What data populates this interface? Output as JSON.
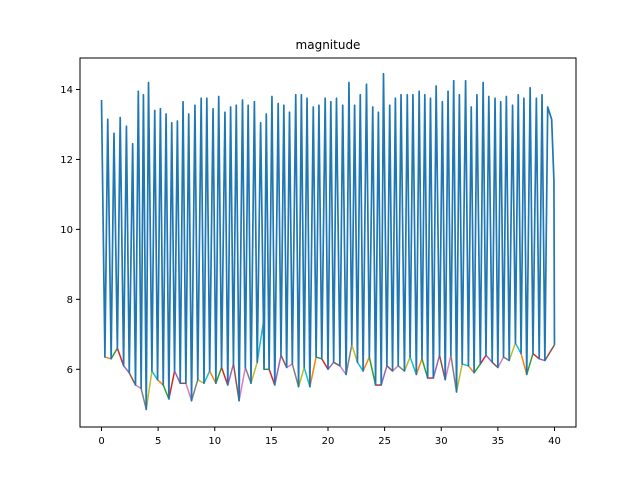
{
  "chart_data": {
    "type": "line",
    "title": "magnitude",
    "xlabel": "",
    "ylabel": "",
    "xlim": [
      -1.9,
      41.9
    ],
    "ylim": [
      4.35,
      14.9
    ],
    "xticks": [
      0,
      5,
      10,
      15,
      20,
      25,
      30,
      35,
      40
    ],
    "yticks": [
      6,
      8,
      10,
      12,
      14
    ],
    "grid": false,
    "legend": "none",
    "series_main": {
      "color": "#1f77b4",
      "peaks": [
        [
          0.0,
          13.7
        ],
        [
          0.55,
          13.15
        ],
        [
          1.1,
          12.75
        ],
        [
          1.65,
          13.2
        ],
        [
          2.2,
          12.95
        ],
        [
          2.75,
          12.45
        ],
        [
          3.25,
          13.95
        ],
        [
          3.7,
          13.85
        ],
        [
          4.15,
          14.2
        ],
        [
          4.7,
          13.4
        ],
        [
          5.2,
          13.45
        ],
        [
          5.7,
          13.3
        ],
        [
          6.2,
          13.05
        ],
        [
          6.7,
          13.1
        ],
        [
          7.2,
          13.65
        ],
        [
          7.7,
          13.3
        ],
        [
          8.25,
          13.55
        ],
        [
          8.8,
          13.75
        ],
        [
          9.3,
          13.75
        ],
        [
          9.85,
          13.45
        ],
        [
          10.35,
          13.8
        ],
        [
          10.9,
          13.35
        ],
        [
          11.4,
          13.5
        ],
        [
          11.9,
          13.55
        ],
        [
          12.45,
          13.7
        ],
        [
          12.95,
          13.55
        ],
        [
          13.5,
          13.65
        ],
        [
          14.05,
          13.05
        ],
        [
          14.55,
          13.3
        ],
        [
          15.05,
          13.8
        ],
        [
          15.6,
          13.6
        ],
        [
          16.1,
          13.55
        ],
        [
          16.6,
          13.35
        ],
        [
          17.15,
          13.85
        ],
        [
          17.65,
          13.85
        ],
        [
          18.15,
          13.75
        ],
        [
          18.7,
          13.5
        ],
        [
          19.2,
          13.55
        ],
        [
          19.75,
          13.75
        ],
        [
          20.25,
          13.65
        ],
        [
          20.75,
          13.75
        ],
        [
          21.3,
          13.55
        ],
        [
          21.85,
          14.2
        ],
        [
          22.35,
          13.55
        ],
        [
          22.85,
          13.85
        ],
        [
          23.4,
          14.15
        ],
        [
          23.95,
          13.5
        ],
        [
          24.45,
          13.35
        ],
        [
          24.9,
          14.45
        ],
        [
          25.45,
          13.55
        ],
        [
          25.95,
          13.75
        ],
        [
          26.45,
          13.85
        ],
        [
          27.0,
          13.85
        ],
        [
          27.5,
          13.85
        ],
        [
          28.05,
          13.95
        ],
        [
          28.55,
          13.85
        ],
        [
          29.05,
          13.75
        ],
        [
          29.55,
          14.1
        ],
        [
          30.1,
          13.65
        ],
        [
          30.6,
          13.95
        ],
        [
          31.1,
          14.25
        ],
        [
          31.6,
          13.85
        ],
        [
          32.15,
          14.25
        ],
        [
          32.65,
          13.5
        ],
        [
          33.15,
          13.85
        ],
        [
          33.7,
          14.2
        ],
        [
          34.2,
          13.8
        ],
        [
          34.75,
          13.75
        ],
        [
          35.25,
          13.65
        ],
        [
          35.75,
          13.8
        ],
        [
          36.3,
          13.55
        ],
        [
          36.8,
          13.85
        ],
        [
          37.3,
          13.75
        ],
        [
          37.85,
          14.05
        ],
        [
          38.4,
          13.75
        ],
        [
          38.9,
          13.85
        ],
        [
          39.4,
          13.5
        ],
        [
          39.75,
          13.15
        ],
        [
          39.95,
          11.4
        ]
      ],
      "troughs": [
        [
          0.3,
          6.35
        ],
        [
          0.85,
          6.3
        ],
        [
          1.4,
          6.6
        ],
        [
          1.95,
          6.1
        ],
        [
          2.45,
          5.9
        ],
        [
          3.0,
          5.55
        ],
        [
          3.5,
          5.45
        ],
        [
          3.95,
          4.85
        ],
        [
          4.45,
          5.95
        ],
        [
          4.95,
          5.7
        ],
        [
          5.45,
          5.55
        ],
        [
          5.95,
          5.15
        ],
        [
          6.45,
          5.95
        ],
        [
          6.95,
          5.6
        ],
        [
          7.45,
          5.6
        ],
        [
          7.95,
          5.1
        ],
        [
          8.5,
          5.7
        ],
        [
          9.05,
          5.6
        ],
        [
          9.55,
          5.95
        ],
        [
          10.1,
          5.6
        ],
        [
          10.6,
          6.05
        ],
        [
          11.15,
          5.55
        ],
        [
          11.65,
          6.15
        ],
        [
          12.15,
          5.1
        ],
        [
          12.7,
          6.05
        ],
        [
          13.2,
          5.6
        ],
        [
          13.75,
          6.2
        ],
        [
          14.3,
          7.35
        ],
        [
          14.35,
          6.0
        ],
        [
          14.8,
          6.0
        ],
        [
          15.3,
          5.55
        ],
        [
          15.85,
          6.4
        ],
        [
          16.35,
          6.05
        ],
        [
          16.85,
          6.15
        ],
        [
          17.4,
          5.5
        ],
        [
          17.9,
          6.05
        ],
        [
          18.4,
          5.5
        ],
        [
          18.95,
          6.35
        ],
        [
          19.45,
          6.3
        ],
        [
          20.0,
          6.0
        ],
        [
          20.5,
          6.2
        ],
        [
          21.05,
          6.1
        ],
        [
          21.6,
          5.85
        ],
        [
          22.1,
          6.7
        ],
        [
          22.6,
          6.2
        ],
        [
          23.1,
          5.95
        ],
        [
          23.65,
          6.35
        ],
        [
          24.2,
          5.55
        ],
        [
          24.7,
          5.55
        ],
        [
          25.2,
          6.1
        ],
        [
          25.7,
          5.95
        ],
        [
          26.2,
          6.1
        ],
        [
          26.75,
          5.95
        ],
        [
          27.25,
          6.35
        ],
        [
          27.8,
          5.85
        ],
        [
          28.3,
          6.3
        ],
        [
          28.8,
          5.75
        ],
        [
          29.3,
          5.75
        ],
        [
          29.85,
          6.4
        ],
        [
          30.35,
          5.7
        ],
        [
          30.85,
          6.4
        ],
        [
          31.35,
          5.35
        ],
        [
          31.85,
          6.15
        ],
        [
          32.4,
          6.1
        ],
        [
          32.9,
          5.9
        ],
        [
          33.45,
          6.15
        ],
        [
          33.95,
          6.4
        ],
        [
          34.5,
          6.2
        ],
        [
          35.0,
          6.05
        ],
        [
          35.5,
          6.35
        ],
        [
          36.0,
          6.25
        ],
        [
          36.55,
          6.75
        ],
        [
          37.05,
          6.45
        ],
        [
          37.55,
          5.85
        ],
        [
          38.1,
          6.45
        ],
        [
          38.65,
          6.3
        ],
        [
          39.15,
          6.25
        ],
        [
          40.0,
          6.7
        ]
      ]
    },
    "trough_segment_colors": [
      "#ff7f0e",
      "#2ca02c",
      "#d62728",
      "#9467bd",
      "#8c564b",
      "#e377c2",
      "#7f7f7f",
      "#bcbd22",
      "#17becf"
    ]
  }
}
